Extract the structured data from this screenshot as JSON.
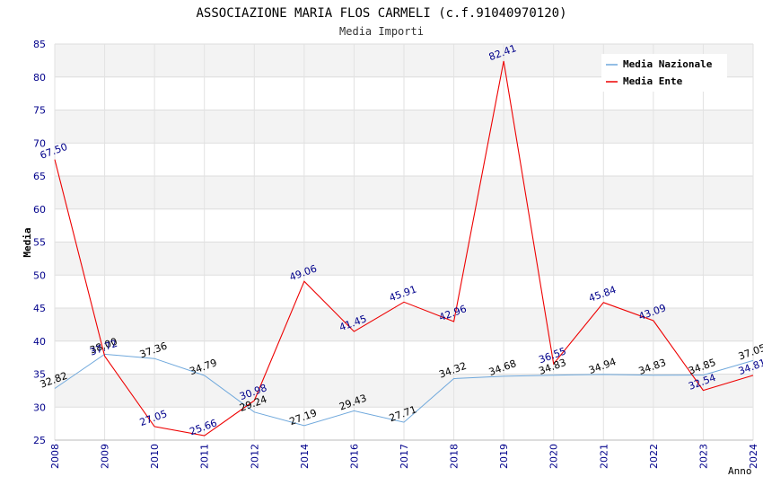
{
  "chart_data": {
    "type": "line",
    "title": "ASSOCIAZIONE MARIA FLOS CARMELI (c.f.91040970120)",
    "subtitle": "Media Importi",
    "xlabel": "Anno",
    "ylabel": "Media",
    "ylim": [
      25,
      85
    ],
    "yticks": [
      25,
      30,
      35,
      40,
      45,
      50,
      55,
      60,
      65,
      70,
      75,
      80,
      85
    ],
    "grid": true,
    "legend_position": "top-right",
    "categories": [
      "2008",
      "2009",
      "2010",
      "2011",
      "2012",
      "2014",
      "2016",
      "2017",
      "2018",
      "2019",
      "2020",
      "2021",
      "2022",
      "2023",
      "2024"
    ],
    "series": [
      {
        "name": "Media Nazionale",
        "color": "#6fa8dc",
        "values": [
          32.82,
          38.0,
          37.36,
          34.79,
          29.24,
          27.19,
          29.43,
          27.71,
          34.32,
          34.68,
          34.83,
          34.94,
          34.83,
          34.85,
          37.05
        ],
        "labels": [
          "32.82",
          "38.00",
          "37.36",
          "34.79",
          "29.24",
          "27.19",
          "29.43",
          "27.71",
          "34.32",
          "34.68",
          "34.83",
          "34.94",
          "34.83",
          "34.85",
          "37.05"
        ]
      },
      {
        "name": "Media Ente",
        "color": "#ee0000",
        "values": [
          67.5,
          37.72,
          27.05,
          25.66,
          30.98,
          49.06,
          41.45,
          45.91,
          42.96,
          82.41,
          36.55,
          45.84,
          43.09,
          32.54,
          34.81
        ],
        "labels": [
          "67.50",
          "37.72",
          "27.05",
          "25.66",
          "30.98",
          "49.06",
          "41.45",
          "45.91",
          "42.96",
          "82.41",
          "36.55",
          "45.84",
          "43.09",
          "32.54",
          "34.81"
        ]
      }
    ]
  }
}
